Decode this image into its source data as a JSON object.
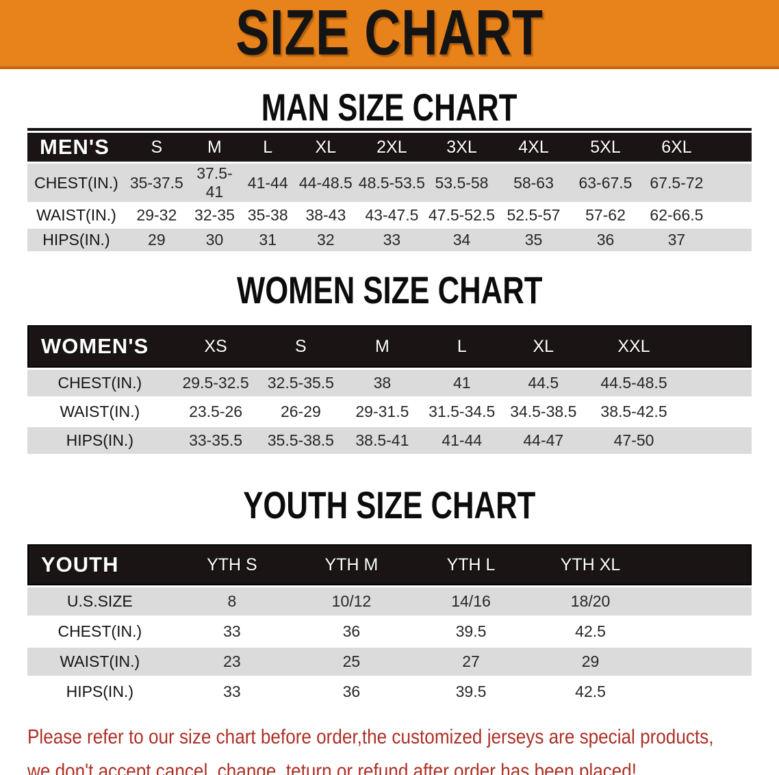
{
  "banner": {
    "title": "SIZE CHART"
  },
  "sections": [
    {
      "title": "MAN SIZE CHART",
      "header_label": "MEN'S",
      "columns": [
        "S",
        "M",
        "L",
        "XL",
        "2XL",
        "3XL",
        "4XL",
        "5XL",
        "6XL"
      ],
      "rows": [
        {
          "label": "CHEST(IN.)",
          "values": [
            "35-37.5",
            "37.5-41",
            "41-44",
            "44-48.5",
            "48.5-53.5",
            "53.5-58",
            "58-63",
            "63-67.5",
            "67.5-72"
          ]
        },
        {
          "label": "WAIST(IN.)",
          "values": [
            "29-32",
            "32-35",
            "35-38",
            "38-43",
            "43-47.5",
            "47.5-52.5",
            "52.5-57",
            "57-62",
            "62-66.5"
          ]
        },
        {
          "label": "HIPS(IN.)",
          "values": [
            "29",
            "30",
            "31",
            "32",
            "33",
            "34",
            "35",
            "36",
            "37"
          ]
        }
      ]
    },
    {
      "title": "WOMEN SIZE CHART",
      "header_label": "WOMEN'S",
      "columns": [
        "XS",
        "S",
        "M",
        "L",
        "XL",
        "XXL"
      ],
      "rows": [
        {
          "label": "CHEST(IN.)",
          "values": [
            "29.5-32.5",
            "32.5-35.5",
            "38",
            "41",
            "44.5",
            "44.5-48.5"
          ]
        },
        {
          "label": "WAIST(IN.)",
          "values": [
            "23.5-26",
            "26-29",
            "29-31.5",
            "31.5-34.5",
            "34.5-38.5",
            "38.5-42.5"
          ]
        },
        {
          "label": "HIPS(IN.)",
          "values": [
            "33-35.5",
            "35.5-38.5",
            "38.5-41",
            "41-44",
            "44-47",
            "47-50"
          ]
        }
      ]
    },
    {
      "title": "YOUTH SIZE CHART",
      "header_label": "YOUTH",
      "columns": [
        "YTH S",
        "YTH M",
        "YTH L",
        "YTH XL"
      ],
      "rows": [
        {
          "label": "U.S.SIZE",
          "values": [
            "8",
            "10/12",
            "14/16",
            "18/20"
          ]
        },
        {
          "label": "CHEST(IN.)",
          "values": [
            "33",
            "36",
            "39.5",
            "42.5"
          ]
        },
        {
          "label": "WAIST(IN.)",
          "values": [
            "23",
            "25",
            "27",
            "29"
          ]
        },
        {
          "label": "HIPS(IN.)",
          "values": [
            "33",
            "36",
            "39.5",
            "42.5"
          ]
        }
      ]
    }
  ],
  "disclaimer": {
    "line1": "Please refer to our size chart before order,the customized jerseys are special products,",
    "line2": "we don't accept cancel, change, teturn or refund after order has been placed!"
  },
  "colors": {
    "banner_bg": "#E8821A",
    "table_header_bg": "#1A1414",
    "row_shade": "#DBDBDB",
    "disclaimer_red": "#AC3026"
  }
}
